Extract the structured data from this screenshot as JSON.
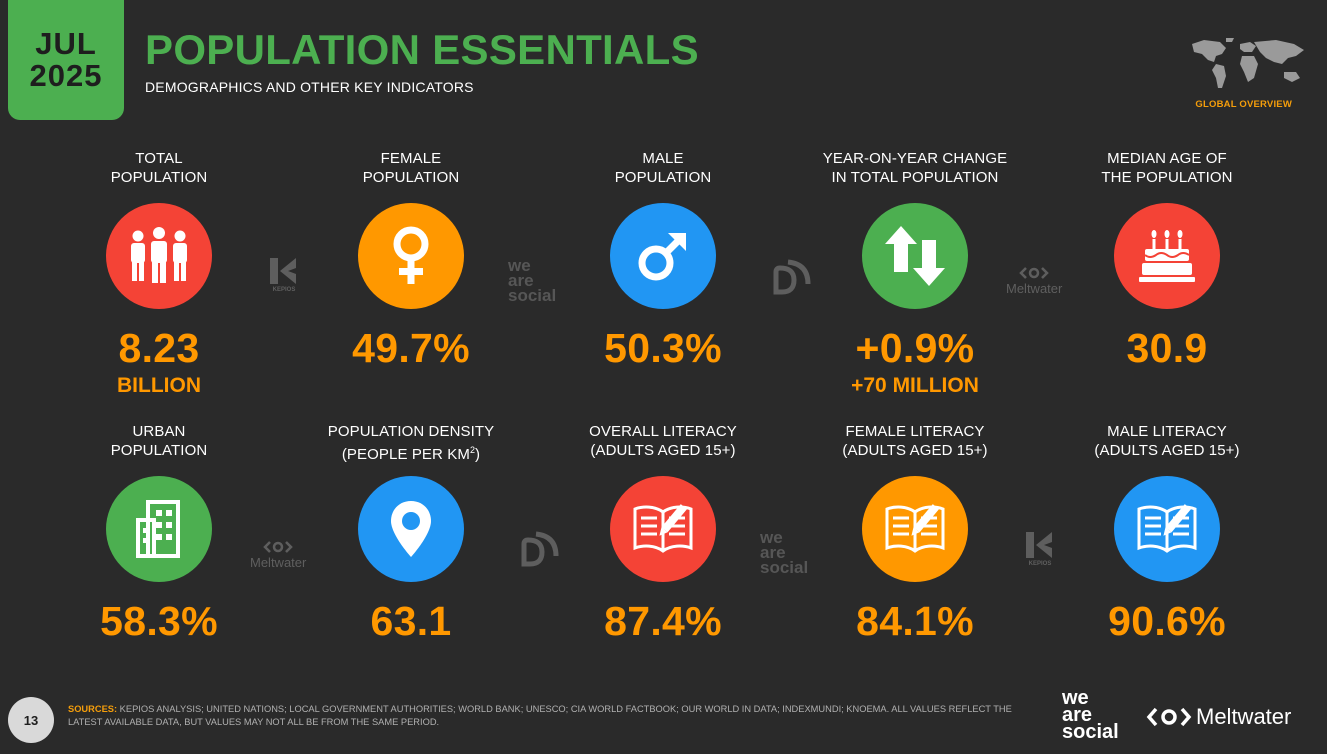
{
  "header": {
    "date_month": "JUL",
    "date_year": "2025",
    "title": "POPULATION ESSENTIALS",
    "subtitle": "DEMOGRAPHICS AND OTHER KEY INDICATORS",
    "badge": "GLOBAL OVERVIEW"
  },
  "colors": {
    "background": "#2a2a2a",
    "accent_green": "#4caf50",
    "value_orange": "#ff9800",
    "red": "#f44336",
    "orange": "#ff9800",
    "blue": "#2196f3",
    "green": "#4caf50"
  },
  "stats": [
    {
      "label_1": "TOTAL",
      "label_2": "POPULATION",
      "value": "8.23",
      "subvalue": "BILLION",
      "icon": "people-icon",
      "color": "#f44336"
    },
    {
      "label_1": "FEMALE",
      "label_2": "POPULATION",
      "value": "49.7%",
      "subvalue": "",
      "icon": "female-symbol-icon",
      "color": "#ff9800"
    },
    {
      "label_1": "MALE",
      "label_2": "POPULATION",
      "value": "50.3%",
      "subvalue": "",
      "icon": "male-symbol-icon",
      "color": "#2196f3"
    },
    {
      "label_1": "YEAR-ON-YEAR CHANGE",
      "label_2": "IN TOTAL POPULATION",
      "value": "+0.9%",
      "subvalue": "+70 MILLION",
      "icon": "up-down-arrows-icon",
      "color": "#4caf50"
    },
    {
      "label_1": "MEDIAN AGE OF",
      "label_2": "THE POPULATION",
      "value": "30.9",
      "subvalue": "",
      "icon": "birthday-cake-icon",
      "color": "#f44336"
    },
    {
      "label_1": "URBAN",
      "label_2": "POPULATION",
      "value": "58.3%",
      "subvalue": "",
      "icon": "city-building-icon",
      "color": "#4caf50"
    },
    {
      "label_1": "POPULATION DENSITY",
      "label_2": "(PEOPLE PER KM",
      "label_sup": "2",
      "label_end": ")",
      "value": "63.1",
      "subvalue": "",
      "icon": "location-pin-icon",
      "color": "#2196f3"
    },
    {
      "label_1": "OVERALL LITERACY",
      "label_2": "(ADULTS AGED 15+)",
      "value": "87.4%",
      "subvalue": "",
      "icon": "open-book-icon",
      "color": "#f44336"
    },
    {
      "label_1": "FEMALE LITERACY",
      "label_2": "(ADULTS AGED 15+)",
      "value": "84.1%",
      "subvalue": "",
      "icon": "open-book-icon",
      "color": "#ff9800"
    },
    {
      "label_1": "MALE LITERACY",
      "label_2": "(ADULTS AGED 15+)",
      "value": "90.6%",
      "subvalue": "",
      "icon": "open-book-icon",
      "color": "#2196f3"
    }
  ],
  "partner_logos": {
    "kepios": "KEPIOS",
    "we_are_social": [
      "we",
      "are",
      "social"
    ],
    "meltwater": "Meltwater"
  },
  "footer": {
    "page_number": "13",
    "sources_label": "SOURCES:",
    "sources_text": "KEPIOS ANALYSIS; UNITED NATIONS; LOCAL GOVERNMENT AUTHORITIES; WORLD BANK; UNESCO; CIA WORLD FACTBOOK; OUR WORLD IN DATA; INDEXMUNDI; KNOEMA. ALL VALUES REFLECT THE LATEST AVAILABLE DATA, BUT VALUES MAY NOT ALL BE FROM THE SAME PERIOD.",
    "we_are_social": [
      "we",
      "are",
      "social"
    ],
    "meltwater": "Meltwater"
  }
}
